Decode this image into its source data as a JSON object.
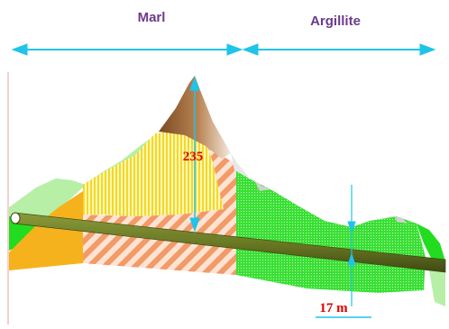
{
  "zones": {
    "left": "Marl",
    "right": "Argillite"
  },
  "dimensions": {
    "peak_cover": "235",
    "tunnel_offset": "17 m"
  },
  "colors": {
    "zone_arrow": "#1fc4e8",
    "dimension_arrow": "#1fc4e8",
    "label_text": "#6b3a8c",
    "dimension_text": "#e00000",
    "marl_orange": "#f5b21c",
    "light_green": "#b7efa6",
    "bright_green": "#22dd1f",
    "peak_brown": "#9b6a3a",
    "yellow_stripes": "#f3e12a",
    "salmon_hatch": "#f0a276",
    "tunnel": "#6b7a24"
  }
}
